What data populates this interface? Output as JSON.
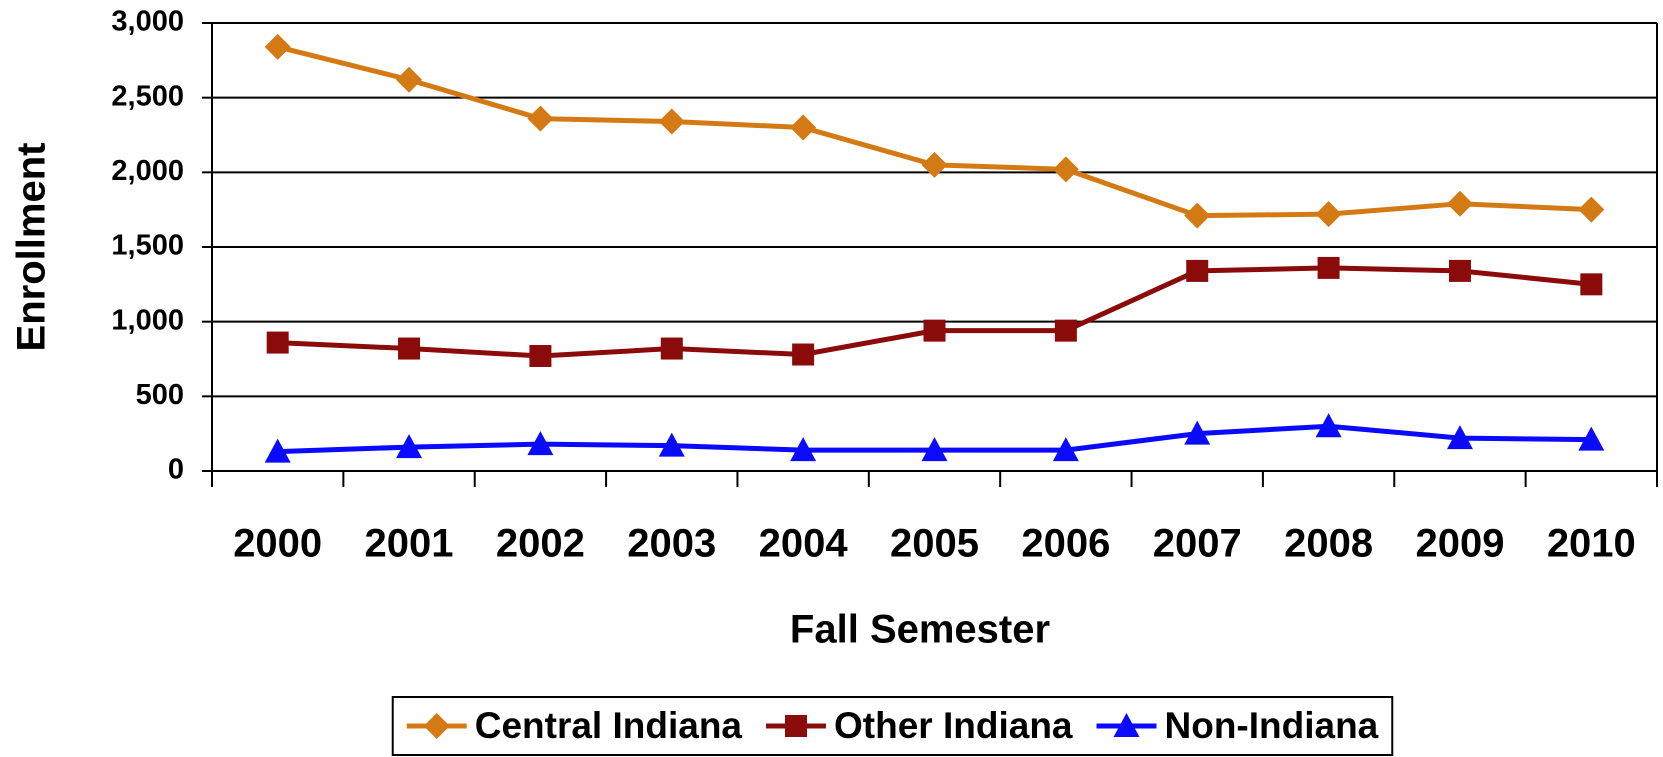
{
  "chart_data": {
    "type": "line",
    "x_label": "Fall Semester",
    "y_label": "Enrollment",
    "categories": [
      "2000",
      "2001",
      "2002",
      "2003",
      "2004",
      "2005",
      "2006",
      "2007",
      "2008",
      "2009",
      "2010"
    ],
    "series": [
      {
        "name": "Central Indiana",
        "color": "#d47a14",
        "marker": "diamond",
        "values": [
          2840,
          2620,
          2360,
          2340,
          2300,
          2050,
          2020,
          1710,
          1720,
          1790,
          1750
        ]
      },
      {
        "name": "Other Indiana",
        "color": "#8b0a0a",
        "marker": "square",
        "values": [
          860,
          820,
          770,
          820,
          780,
          940,
          940,
          1340,
          1360,
          1340,
          1250
        ]
      },
      {
        "name": "Non-Indiana",
        "color": "#0a0aff",
        "marker": "triangle",
        "values": [
          130,
          160,
          180,
          170,
          140,
          140,
          140,
          250,
          300,
          220,
          210
        ]
      }
    ],
    "ylim": [
      0,
      3000
    ],
    "yticks": [
      0,
      500,
      {
        "value": 1000,
        "label": "1,000"
      },
      {
        "value": 1500,
        "label": "1,500"
      },
      {
        "value": 2000,
        "label": "2,000"
      },
      {
        "value": 2500,
        "label": "2,500"
      },
      {
        "value": 3000,
        "label": "3,000"
      }
    ],
    "grid": true,
    "legend": "bottom"
  }
}
